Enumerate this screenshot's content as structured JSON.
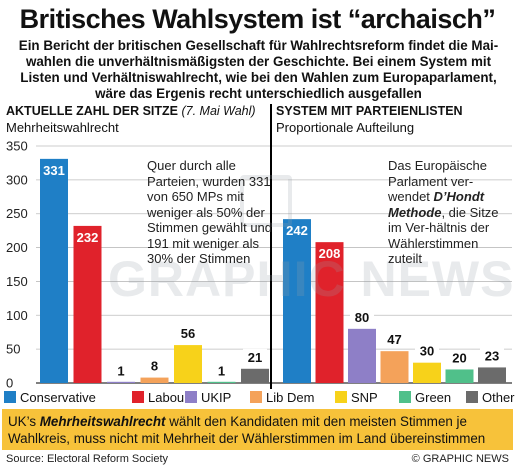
{
  "title": "Britisches Wahlsystem ist “archaisch”",
  "intro": "Ein Bericht der britischen Gesellschaft für Wahlrechtsreform findet die Mai-wahlen die unverhältnismäßigsten der Geschichte. Bei einem System mit Listen und Verhältniswahlrecht, wie bei den Wahlen zum Europaparlament, wäre das Ergenis recht unterschiedlich ausgefallen",
  "left_section": {
    "heading": "AKTUELLE ZAHL DER SITZE",
    "heading_note": "(7. Mai Wahl)",
    "subheading": "Mehrheitswahlrecht",
    "note": "Quer durch alle Parteien, wurden 331 von 650 MPs mit weniger als 50% der Stimmen gewählt und 191 mit weniger als 30% der Stimmen"
  },
  "right_section": {
    "heading": "SYSTEM MIT PARTEIENLISTEN",
    "subheading": "Proportionale Aufteilung",
    "note_before": "Das Europäische Parlament ver-wendet ",
    "note_emph": "D’Hondt Methode",
    "note_after": ", die Sitze im Ver-hältnis der Wählerstimmen zuteilt"
  },
  "chart_data": {
    "type": "bar",
    "categories": [
      "Conservative",
      "Labour",
      "UKIP",
      "Lib Dem",
      "SNP",
      "Green",
      "Other"
    ],
    "colors": [
      "#1f7fc6",
      "#e0222b",
      "#8e7fc7",
      "#f4a25a",
      "#f7d21a",
      "#50c08a",
      "#6b6b6b"
    ],
    "ylim": [
      0,
      350
    ],
    "yticks": [
      0,
      50,
      100,
      150,
      200,
      250,
      300,
      350
    ],
    "grid": true,
    "series": [
      {
        "values": [
          331,
          232,
          1,
          8,
          56,
          1,
          21
        ]
      },
      {
        "values": [
          242,
          208,
          80,
          47,
          30,
          20,
          23
        ]
      }
    ]
  },
  "legend": [
    "Conservative",
    "Labour",
    "UKIP",
    "Lib Dem",
    "SNP",
    "Green",
    "Other"
  ],
  "footer": {
    "emph": "Mehrheitswahlrecht",
    "before": "UK’s ",
    "after": " wählt den Kandidaten mit den meisten Stimmen je Wahlkreis, muss nicht mit Mehrheit der Wählerstimmen im Land übereinstimmen"
  },
  "source": "Source: Electoral Reform Society",
  "credit": "© GRAPHIC NEWS",
  "watermark": "GRAPHIC NEWS"
}
